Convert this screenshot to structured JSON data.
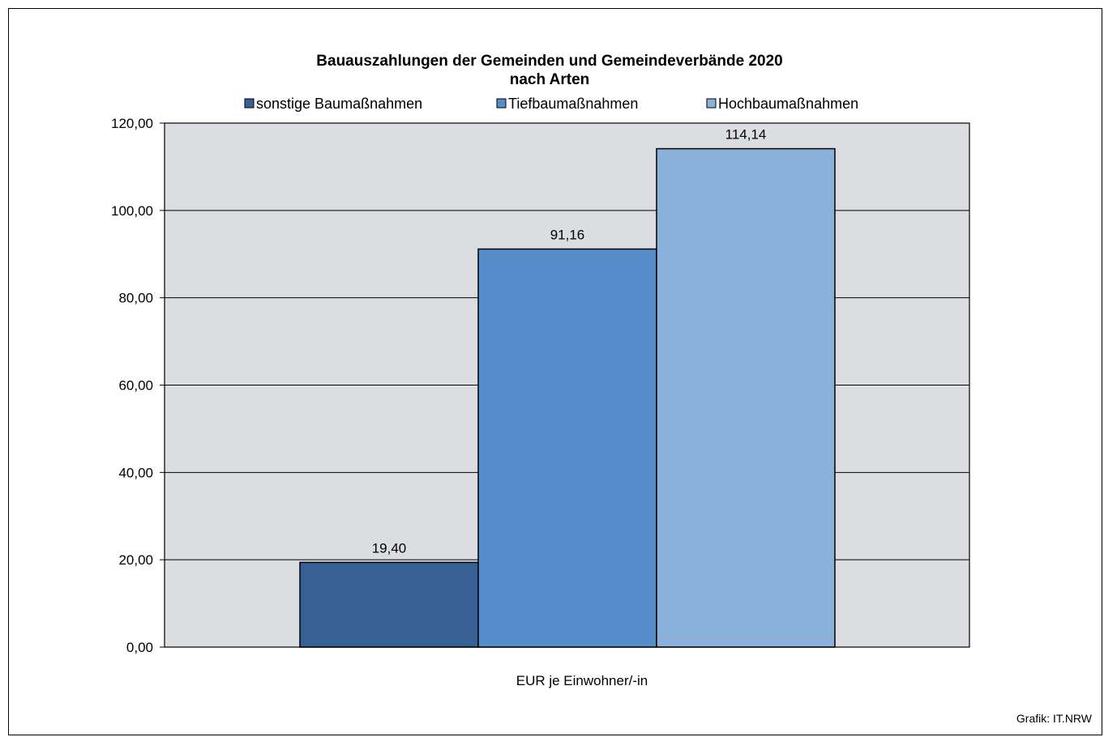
{
  "chart_data": {
    "type": "bar",
    "title_line1": "Bauauszahlungen der Gemeinden und Gemeindeverbände 2020",
    "title_line2": "nach Arten",
    "xlabel": "EUR je Einwohner/-in",
    "ylabel": "",
    "ylim": [
      0,
      120
    ],
    "ytick_step": 20,
    "yticks": [
      "0,00",
      "20,00",
      "40,00",
      "60,00",
      "80,00",
      "100,00",
      "120,00"
    ],
    "grid": true,
    "legend_position": "top",
    "series": [
      {
        "name": "sonstige Baumaßnahmen",
        "value": 19.4,
        "label": "19,40",
        "color": "#376195"
      },
      {
        "name": "Tiefbaumaßnahmen",
        "value": 91.16,
        "label": "91,16",
        "color": "#558dca"
      },
      {
        "name": "Hochbaumaßnahmen",
        "value": 114.14,
        "label": "114,14",
        "color": "#8bb0d9"
      }
    ],
    "plot_background": "#dcdde0"
  },
  "credit": "Grafik: IT.NRW"
}
